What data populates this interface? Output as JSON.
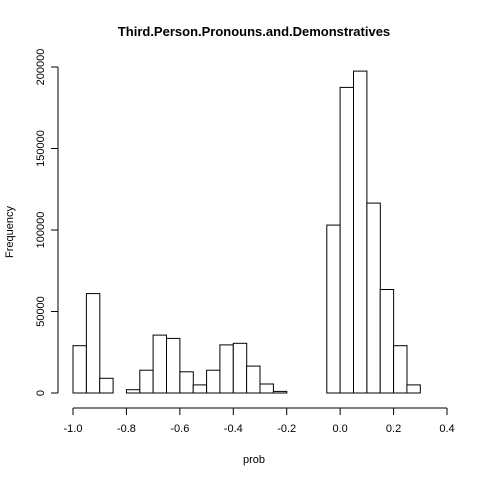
{
  "chart_data": {
    "type": "bar",
    "title": "Third.Person.Pronouns.and.Demonstratives",
    "xlabel": "prob",
    "ylabel": "Frequency",
    "xlim": [
      -1.0,
      0.4
    ],
    "ylim": [
      0,
      200000
    ],
    "x_ticks": [
      -1.0,
      -0.8,
      -0.6,
      -0.4,
      -0.2,
      0.0,
      0.2,
      0.4
    ],
    "x_tick_labels": [
      "-1.0",
      "-0.8",
      "-0.6",
      "-0.4",
      "-0.2",
      "0.0",
      "0.2",
      "0.4"
    ],
    "y_ticks": [
      0,
      50000,
      100000,
      150000,
      200000
    ],
    "y_tick_labels": [
      "0",
      "50000",
      "100000",
      "150000",
      "200000"
    ],
    "bin_width": 0.05,
    "bins": [
      {
        "start": -1.0,
        "value": 29000
      },
      {
        "start": -0.95,
        "value": 61000
      },
      {
        "start": -0.9,
        "value": 9000
      },
      {
        "start": -0.85,
        "value": 0
      },
      {
        "start": -0.8,
        "value": 2000
      },
      {
        "start": -0.75,
        "value": 14000
      },
      {
        "start": -0.7,
        "value": 35500
      },
      {
        "start": -0.65,
        "value": 33500
      },
      {
        "start": -0.6,
        "value": 13000
      },
      {
        "start": -0.55,
        "value": 5000
      },
      {
        "start": -0.5,
        "value": 14000
      },
      {
        "start": -0.45,
        "value": 29500
      },
      {
        "start": -0.4,
        "value": 30500
      },
      {
        "start": -0.35,
        "value": 16500
      },
      {
        "start": -0.3,
        "value": 5500
      },
      {
        "start": -0.25,
        "value": 1000
      },
      {
        "start": -0.2,
        "value": 0
      },
      {
        "start": -0.15,
        "value": 0
      },
      {
        "start": -0.1,
        "value": 0
      },
      {
        "start": -0.05,
        "value": 103000
      },
      {
        "start": 0.0,
        "value": 187500
      },
      {
        "start": 0.05,
        "value": 197500
      },
      {
        "start": 0.1,
        "value": 116500
      },
      {
        "start": 0.15,
        "value": 63500
      },
      {
        "start": 0.2,
        "value": 29000
      },
      {
        "start": 0.25,
        "value": 5000
      }
    ],
    "grid": false,
    "legend": "none"
  }
}
